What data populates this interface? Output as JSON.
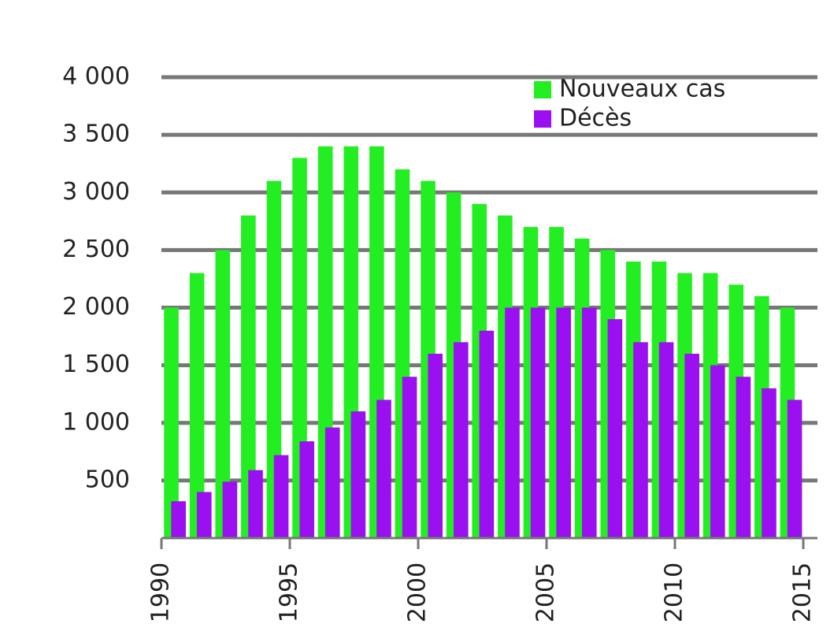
{
  "chart_data": {
    "type": "bar",
    "x": [
      1990,
      1991,
      1992,
      1993,
      1994,
      1995,
      1996,
      1997,
      1998,
      1999,
      2000,
      2001,
      2002,
      2003,
      2004,
      2005,
      2006,
      2007,
      2008,
      2009,
      2010,
      2011,
      2012,
      2013,
      2014
    ],
    "series": [
      {
        "name": "Nouveaux cas",
        "color": "#22ee22",
        "values": [
          2000,
          2300,
          2500,
          2800,
          3100,
          3300,
          3400,
          3400,
          3400,
          3200,
          3100,
          3000,
          2900,
          2800,
          2700,
          2700,
          2600,
          2500,
          2400,
          2400,
          2300,
          2300,
          2200,
          2100,
          2000
        ]
      },
      {
        "name": "Décès",
        "color": "#9a10f0",
        "values": [
          320,
          400,
          490,
          590,
          720,
          840,
          960,
          1100,
          1200,
          1400,
          1600,
          1700,
          1800,
          2000,
          2000,
          2000,
          2000,
          1900,
          1700,
          1700,
          1600,
          1500,
          1400,
          1300,
          1200
        ]
      }
    ],
    "xlim": [
      1990,
      2015
    ],
    "xticks": [
      1990,
      1995,
      2000,
      2005,
      2010,
      2015
    ],
    "ylim": [
      0,
      4000
    ],
    "yticks": [
      {
        "value": 500,
        "label": "500"
      },
      {
        "value": 1000,
        "label": "1 000"
      },
      {
        "value": 1500,
        "label": "1 500"
      },
      {
        "value": 2000,
        "label": "2 000"
      },
      {
        "value": 2500,
        "label": "2 500"
      },
      {
        "value": 3000,
        "label": "3 000"
      },
      {
        "value": 3500,
        "label": "3 500"
      },
      {
        "value": 4000,
        "label": "4 000"
      }
    ],
    "grid": true,
    "legend": "top-right"
  }
}
